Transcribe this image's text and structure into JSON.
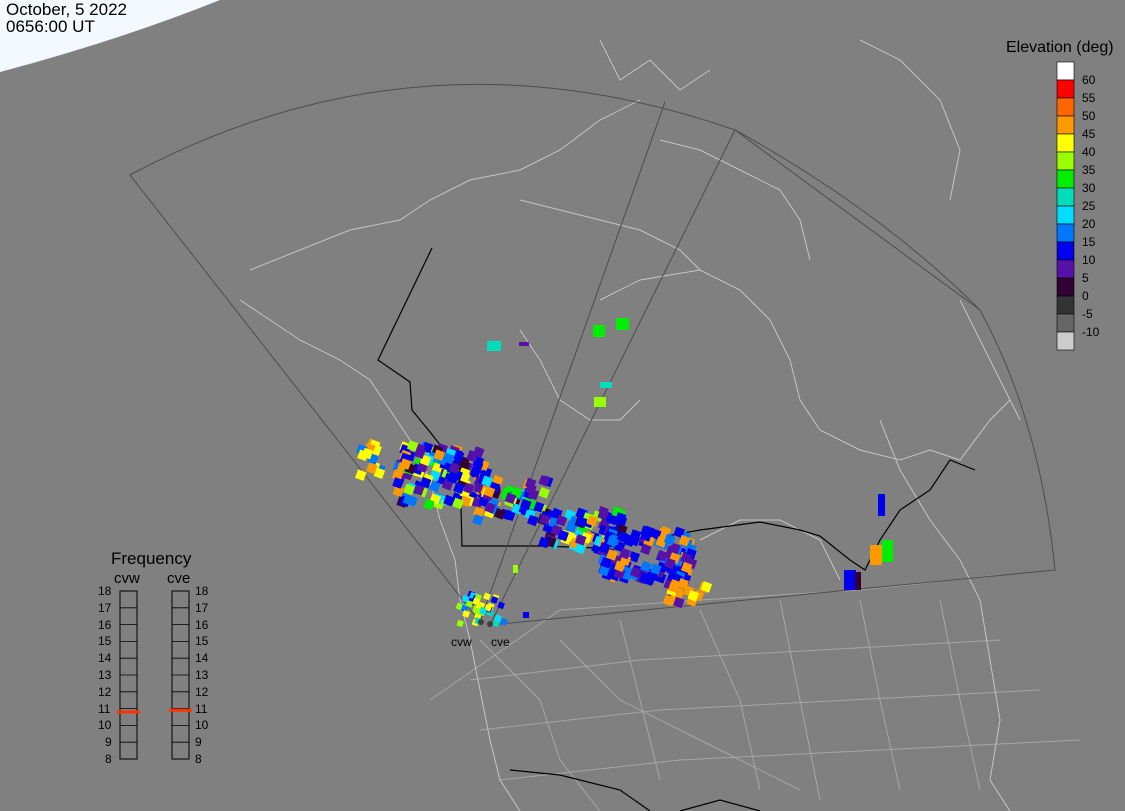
{
  "header": {
    "date": "October, 5 2022",
    "time": "0656:00 UT"
  },
  "colorbar": {
    "title": "Elevation (deg)",
    "levels": [
      {
        "label": "60",
        "color": "#ffffff"
      },
      {
        "label": "55",
        "color": "#ff0000"
      },
      {
        "label": "50",
        "color": "#ff6600"
      },
      {
        "label": "45",
        "color": "#ff9900"
      },
      {
        "label": "40",
        "color": "#ffff00"
      },
      {
        "label": "35",
        "color": "#99ff00"
      },
      {
        "label": "30",
        "color": "#00ee00"
      },
      {
        "label": "25",
        "color": "#00ddbb"
      },
      {
        "label": "20",
        "color": "#00ddff"
      },
      {
        "label": "15",
        "color": "#0077ff"
      },
      {
        "label": "10",
        "color": "#0000ee"
      },
      {
        "label": "5",
        "color": "#5511aa"
      },
      {
        "label": "0",
        "color": "#330033"
      },
      {
        "label": "-5",
        "color": "#333333"
      },
      {
        "label": "-10",
        "color": "#666666"
      },
      {
        "label": "",
        "color": "#cccccc"
      }
    ]
  },
  "frequency": {
    "title": "Frequency",
    "radars": [
      {
        "name": "cvw",
        "value": 10.8
      },
      {
        "name": "cve",
        "value": 10.9
      }
    ],
    "ticks": [
      "18",
      "17",
      "16",
      "15",
      "14",
      "13",
      "12",
      "11",
      "10",
      "9",
      "8"
    ],
    "marker_color": "#ff3300"
  },
  "sites": [
    {
      "name": "cvw"
    },
    {
      "name": "cve"
    }
  ]
}
